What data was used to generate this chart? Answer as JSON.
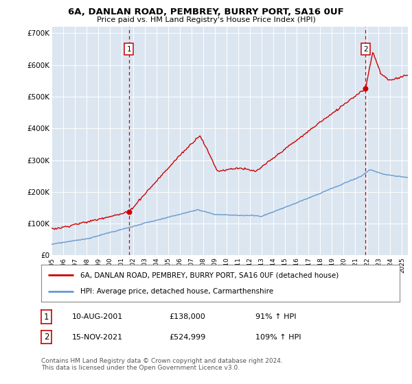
{
  "title1": "6A, DANLAN ROAD, PEMBREY, BURRY PORT, SA16 0UF",
  "title2": "Price paid vs. HM Land Registry's House Price Index (HPI)",
  "ylim": [
    0,
    720000
  ],
  "yticks": [
    0,
    100000,
    200000,
    300000,
    400000,
    500000,
    600000,
    700000
  ],
  "ytick_labels": [
    "£0",
    "£100K",
    "£200K",
    "£300K",
    "£400K",
    "£500K",
    "£600K",
    "£700K"
  ],
  "plot_bg_color": "#dce6f1",
  "legend_line1": "6A, DANLAN ROAD, PEMBREY, BURRY PORT, SA16 0UF (detached house)",
  "legend_line2": "HPI: Average price, detached house, Carmarthenshire",
  "color_red": "#cc0000",
  "color_blue": "#6699cc",
  "annotation1_label": "1",
  "annotation1_date": "10-AUG-2001",
  "annotation1_price": "£138,000",
  "annotation1_hpi": "91% ↑ HPI",
  "annotation2_label": "2",
  "annotation2_date": "15-NOV-2021",
  "annotation2_price": "£524,999",
  "annotation2_hpi": "109% ↑ HPI",
  "footer": "Contains HM Land Registry data © Crown copyright and database right 2024.\nThis data is licensed under the Open Government Licence v3.0.",
  "marker1_x": 2001.62,
  "marker1_y": 138000,
  "marker2_x": 2021.87,
  "marker2_y": 524999,
  "vline1_x": 2001.62,
  "vline2_x": 2021.87,
  "xmin": 1995,
  "xmax": 2025.5
}
